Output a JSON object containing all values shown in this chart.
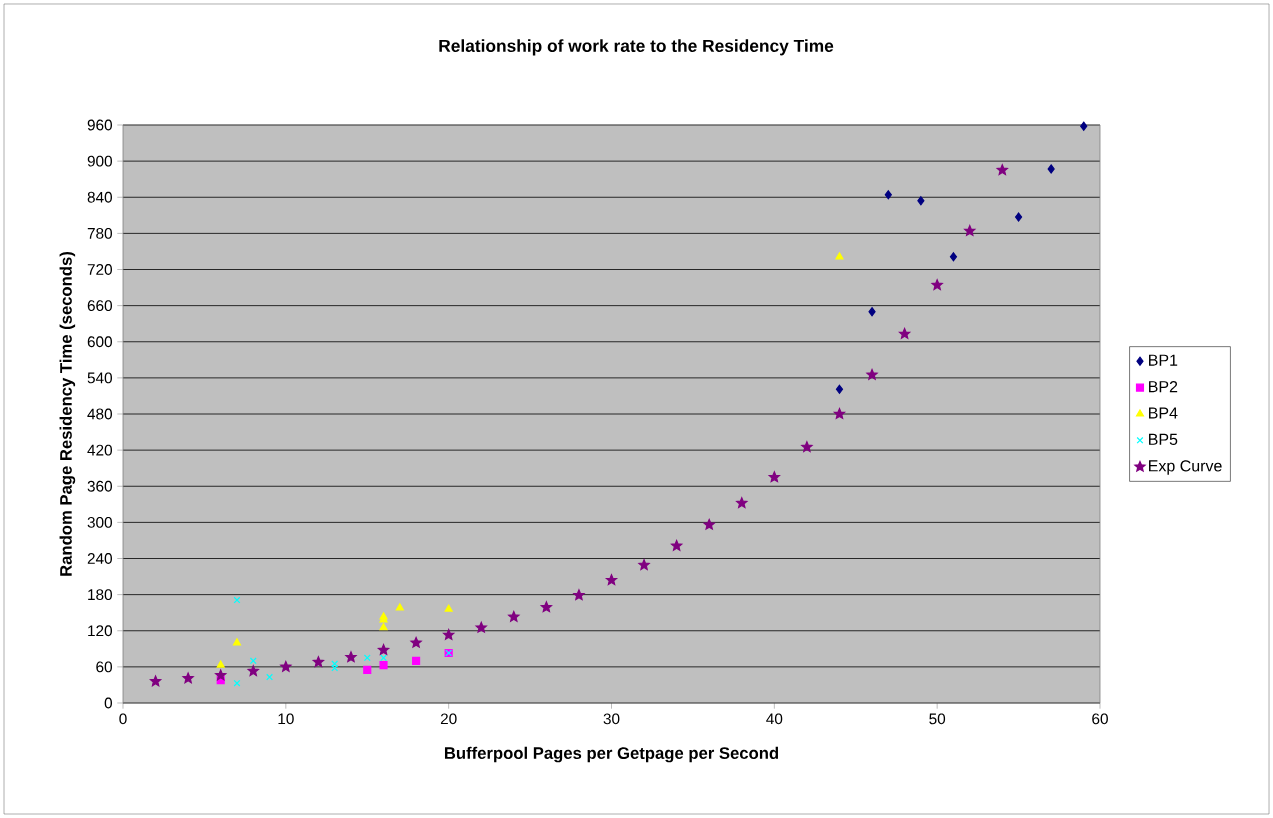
{
  "chart_data": {
    "type": "scatter",
    "title": "Relationship of work rate to the Residency Time",
    "xlabel": "Bufferpool Pages per Getpage per Second",
    "ylabel": "Random Page Residency Time (seconds)",
    "xlim": [
      0,
      60
    ],
    "xticks": [
      0,
      10,
      20,
      30,
      40,
      50,
      60
    ],
    "ylim": [
      0,
      960
    ],
    "yticks": [
      0,
      60,
      120,
      180,
      240,
      300,
      360,
      420,
      480,
      540,
      600,
      660,
      720,
      780,
      840,
      900,
      960
    ],
    "grid": "y",
    "legend": "right",
    "series": [
      {
        "name": "BP1",
        "color": "#000080",
        "marker": "diamond",
        "x": [
          44,
          46,
          47,
          49,
          51,
          55,
          57,
          59
        ],
        "values": [
          521,
          650,
          844,
          834,
          741,
          807,
          887,
          958
        ]
      },
      {
        "name": "BP2",
        "color": "#ff00ff",
        "marker": "square",
        "x": [
          6,
          15,
          16,
          18,
          20
        ],
        "values": [
          38,
          55,
          63,
          70,
          83
        ]
      },
      {
        "name": "BP4",
        "color": "#ffff00",
        "marker": "triangle",
        "x": [
          6,
          7,
          16,
          16,
          16,
          17,
          20,
          44
        ],
        "values": [
          63,
          100,
          125,
          138,
          143,
          158,
          156,
          741
        ]
      },
      {
        "name": "BP5",
        "color": "#00ffff",
        "marker": "cross",
        "x": [
          7,
          7,
          8,
          9,
          13,
          13,
          15,
          16,
          20
        ],
        "values": [
          171,
          33,
          70,
          43,
          65,
          58,
          75,
          75,
          83
        ]
      },
      {
        "name": "Exp Curve",
        "color": "#800080",
        "marker": "star",
        "x": [
          2,
          4,
          6,
          8,
          10,
          12,
          14,
          16,
          18,
          20,
          22,
          24,
          26,
          28,
          30,
          32,
          34,
          36,
          38,
          40,
          42,
          44,
          46,
          48,
          50,
          52,
          54
        ],
        "values": [
          36,
          41,
          46,
          53,
          60,
          68,
          76,
          88,
          100,
          113,
          125,
          143,
          159,
          179,
          204,
          229,
          261,
          296,
          332,
          375,
          425,
          480,
          545,
          613,
          694,
          784,
          885
        ]
      }
    ]
  }
}
